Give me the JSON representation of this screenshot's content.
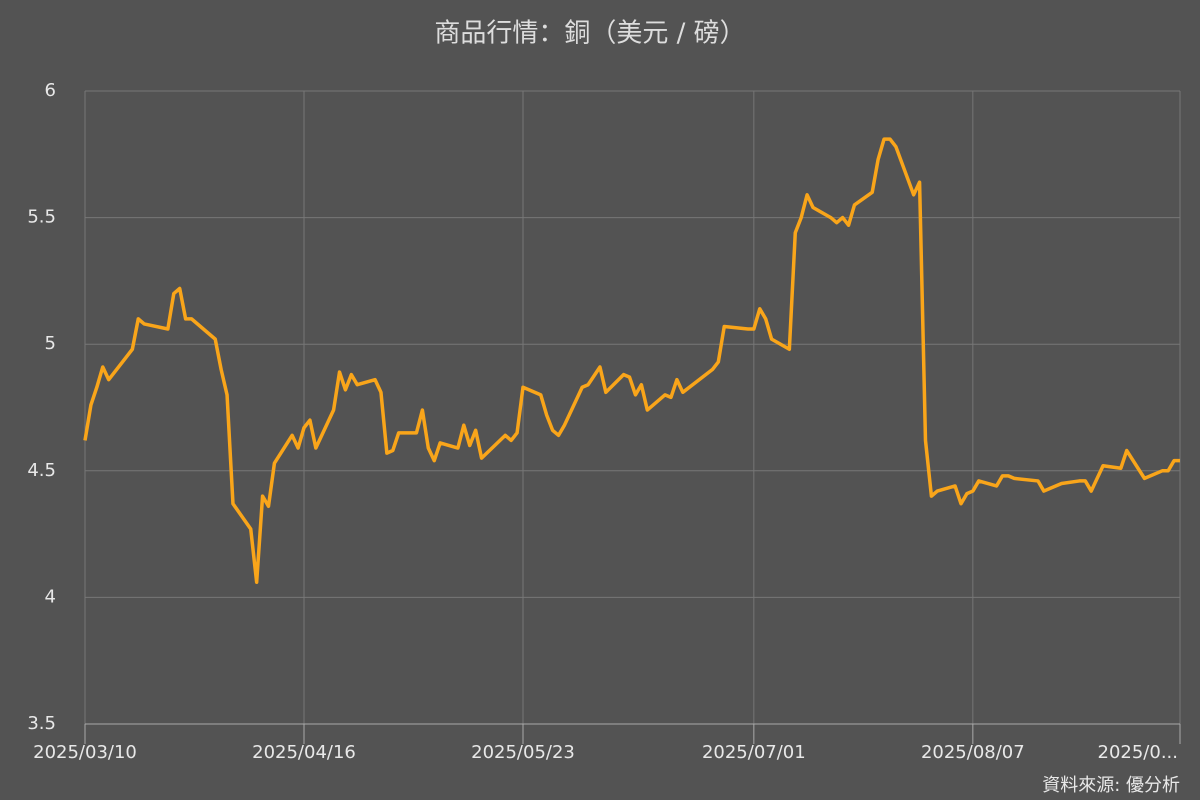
{
  "chart_data": {
    "type": "line",
    "title": "商品行情：銅（美元 / 磅）",
    "source": "資料來源: 優分析",
    "x": [
      "2025/03/10",
      "2025/03/11",
      "2025/03/12",
      "2025/03/13",
      "2025/03/14",
      "2025/03/18",
      "2025/03/19",
      "2025/03/20",
      "2025/03/24",
      "2025/03/25",
      "2025/03/26",
      "2025/03/27",
      "2025/03/28",
      "2025/04/01",
      "2025/04/02",
      "2025/04/03",
      "2025/04/04",
      "2025/04/07",
      "2025/04/08",
      "2025/04/09",
      "2025/04/10",
      "2025/04/11",
      "2025/04/14",
      "2025/04/15",
      "2025/04/16",
      "2025/04/17",
      "2025/04/18",
      "2025/04/21",
      "2025/04/22",
      "2025/04/23",
      "2025/04/24",
      "2025/04/25",
      "2025/04/28",
      "2025/04/29",
      "2025/04/30",
      "2025/05/01",
      "2025/05/02",
      "2025/05/05",
      "2025/05/06",
      "2025/05/07",
      "2025/05/08",
      "2025/05/09",
      "2025/05/12",
      "2025/05/13",
      "2025/05/14",
      "2025/05/15",
      "2025/05/16",
      "2025/05/20",
      "2025/05/21",
      "2025/05/22",
      "2025/05/23",
      "2025/05/26",
      "2025/05/27",
      "2025/05/28",
      "2025/05/29",
      "2025/05/30",
      "2025/06/02",
      "2025/06/03",
      "2025/06/05",
      "2025/06/06",
      "2025/06/09",
      "2025/06/10",
      "2025/06/11",
      "2025/06/12",
      "2025/06/13",
      "2025/06/16",
      "2025/06/17",
      "2025/06/18",
      "2025/06/19",
      "2025/06/24",
      "2025/06/25",
      "2025/06/26",
      "2025/06/30",
      "2025/07/01",
      "2025/07/02",
      "2025/07/03",
      "2025/07/04",
      "2025/07/07",
      "2025/07/08",
      "2025/07/09",
      "2025/07/10",
      "2025/07/11",
      "2025/07/14",
      "2025/07/15",
      "2025/07/16",
      "2025/07/17",
      "2025/07/18",
      "2025/07/21",
      "2025/07/22",
      "2025/07/23",
      "2025/07/24",
      "2025/07/25",
      "2025/07/28",
      "2025/07/29",
      "2025/07/30",
      "2025/07/31",
      "2025/08/01",
      "2025/08/04",
      "2025/08/05",
      "2025/08/06",
      "2025/08/07",
      "2025/08/08",
      "2025/08/11",
      "2025/08/12",
      "2025/08/13",
      "2025/08/14",
      "2025/08/18",
      "2025/08/19",
      "2025/08/20",
      "2025/08/22",
      "2025/08/25",
      "2025/08/26",
      "2025/08/27",
      "2025/08/29",
      "2025/09/01",
      "2025/09/02",
      "2025/09/05",
      "2025/09/08",
      "2025/09/09",
      "2025/09/10",
      "2025/09/11"
    ],
    "series": [
      {
        "name": "銅",
        "color": "#f9a51a",
        "values": [
          4.62,
          4.76,
          4.83,
          4.91,
          4.86,
          4.98,
          5.1,
          5.08,
          5.06,
          5.2,
          5.22,
          5.1,
          5.1,
          5.02,
          4.9,
          4.8,
          4.37,
          4.27,
          4.06,
          4.4,
          4.36,
          4.53,
          4.64,
          4.59,
          4.67,
          4.7,
          4.59,
          4.74,
          4.89,
          4.82,
          4.88,
          4.84,
          4.86,
          4.81,
          4.57,
          4.58,
          4.65,
          4.65,
          4.74,
          4.59,
          4.54,
          4.61,
          4.59,
          4.68,
          4.6,
          4.66,
          4.55,
          4.64,
          4.62,
          4.65,
          4.83,
          4.8,
          4.72,
          4.66,
          4.64,
          4.68,
          4.83,
          4.84,
          4.91,
          4.81,
          4.88,
          4.87,
          4.8,
          4.84,
          4.74,
          4.8,
          4.79,
          4.86,
          4.81,
          4.9,
          4.93,
          5.07,
          5.06,
          5.06,
          5.14,
          5.1,
          5.02,
          4.98,
          5.44,
          5.5,
          5.59,
          5.54,
          5.5,
          5.48,
          5.5,
          5.47,
          5.55,
          5.6,
          5.73,
          5.81,
          5.81,
          5.78,
          5.59,
          5.64,
          4.62,
          4.4,
          4.42,
          4.44,
          4.37,
          4.41,
          4.42,
          4.46,
          4.44,
          4.48,
          4.48,
          4.47,
          4.46,
          4.42,
          4.43,
          4.45,
          4.46,
          4.46,
          4.42,
          4.52,
          4.51,
          4.58,
          4.47,
          4.5,
          4.5,
          4.54,
          4.54
        ]
      }
    ],
    "xlim": [
      "2025/03/10",
      "2025/09/11"
    ],
    "xticks": [
      "2025/03/10",
      "2025/04/16",
      "2025/05/23",
      "2025/07/01",
      "2025/08/07",
      {
        "value": "2025/09/11",
        "label": "2025/0..."
      }
    ],
    "ylim": [
      3.5,
      6
    ],
    "yticks": [
      3.5,
      4,
      4.5,
      5,
      5.5,
      6
    ],
    "grid": true
  }
}
